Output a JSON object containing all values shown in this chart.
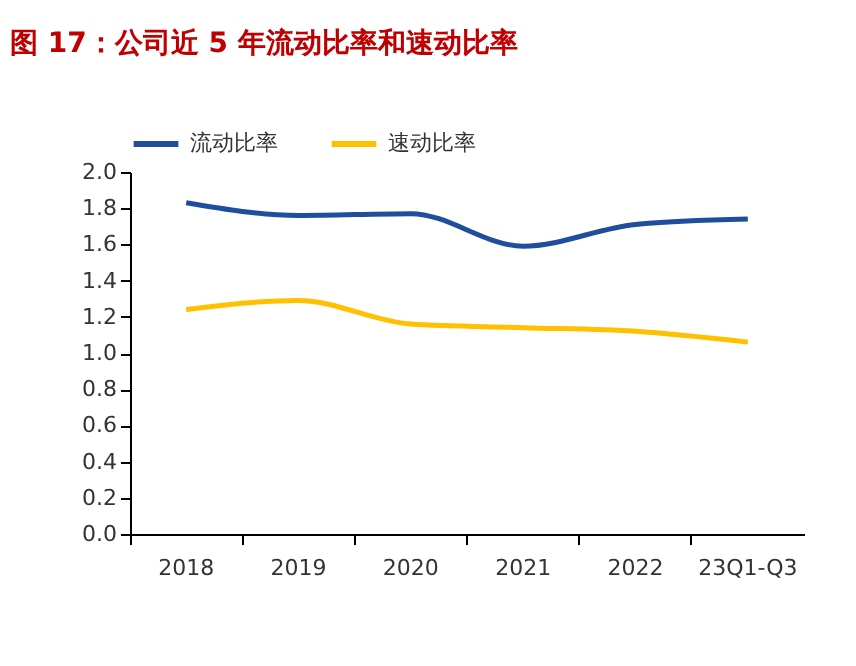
{
  "chart_data": {
    "type": "line",
    "title": "图 17：公司近 5 年流动比率和速动比率",
    "categories": [
      "2018",
      "2019",
      "2020",
      "2021",
      "2022",
      "23Q1-Q3"
    ],
    "series": [
      {
        "name": "流动比率",
        "color": "#1f4e9c",
        "values": [
          1.83,
          1.76,
          1.77,
          1.59,
          1.71,
          1.74
        ]
      },
      {
        "name": "速动比率",
        "color": "#ffc000",
        "values": [
          1.24,
          1.29,
          1.16,
          1.14,
          1.12,
          1.06
        ]
      }
    ],
    "ylim": [
      0,
      2
    ],
    "yticks": [
      {
        "value": 0,
        "label": "0.0"
      },
      0.2,
      0.4,
      0.6,
      0.8,
      {
        "value": 1,
        "label": "1.0"
      },
      1.2,
      1.4,
      1.6,
      1.8,
      {
        "value": 2,
        "label": "2.0"
      }
    ],
    "grid": false,
    "legend": "top",
    "marker": "none",
    "line_style": "solid"
  }
}
